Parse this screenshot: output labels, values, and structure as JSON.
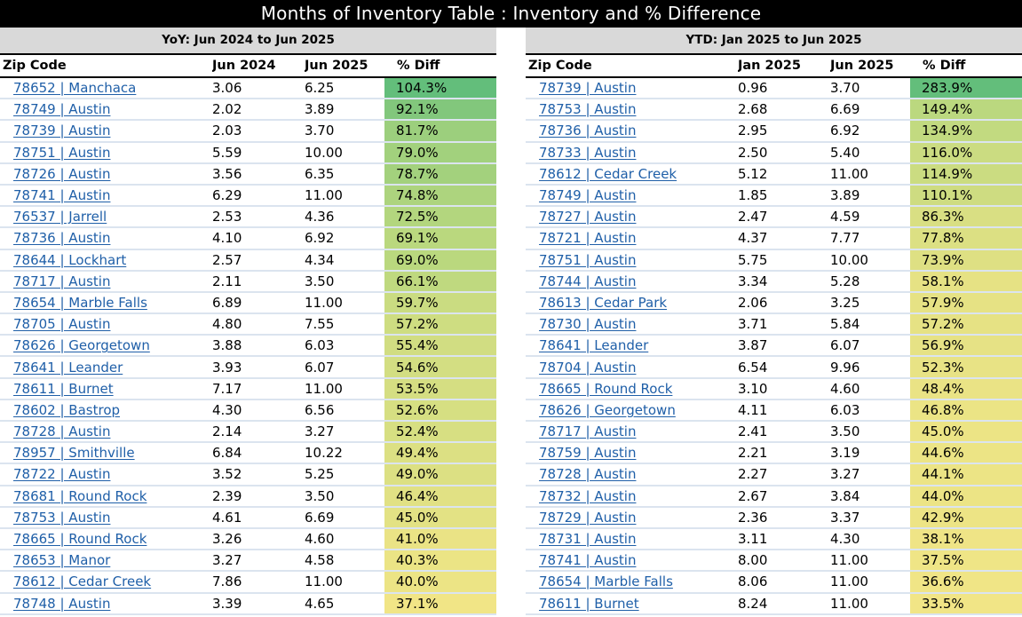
{
  "title": "Months of Inventory Table : Inventory and % Difference",
  "color_scale": {
    "max": "#63be7b",
    "mid": "#b7d77e",
    "min": "#f1e586"
  },
  "tables": [
    {
      "heading": "YoY: Jun 2024 to Jun 2025",
      "columns": [
        "Zip Code",
        "Jun 2024",
        "Jun 2025",
        "% Diff"
      ],
      "rows": [
        [
          "78652 | Manchaca",
          "3.06",
          "6.25",
          "104.3%"
        ],
        [
          "78749 | Austin",
          "2.02",
          "3.89",
          "92.1%"
        ],
        [
          "78739 | Austin",
          "2.03",
          "3.70",
          "81.7%"
        ],
        [
          "78751 | Austin",
          "5.59",
          "10.00",
          "79.0%"
        ],
        [
          "78726 | Austin",
          "3.56",
          "6.35",
          "78.7%"
        ],
        [
          "78741 | Austin",
          "6.29",
          "11.00",
          "74.8%"
        ],
        [
          "76537 | Jarrell",
          "2.53",
          "4.36",
          "72.5%"
        ],
        [
          "78736 | Austin",
          "4.10",
          "6.92",
          "69.1%"
        ],
        [
          "78644 | Lockhart",
          "2.57",
          "4.34",
          "69.0%"
        ],
        [
          "78717 | Austin",
          "2.11",
          "3.50",
          "66.1%"
        ],
        [
          "78654 | Marble Falls",
          "6.89",
          "11.00",
          "59.7%"
        ],
        [
          "78705 | Austin",
          "4.80",
          "7.55",
          "57.2%"
        ],
        [
          "78626 | Georgetown",
          "3.88",
          "6.03",
          "55.4%"
        ],
        [
          "78641 | Leander",
          "3.93",
          "6.07",
          "54.6%"
        ],
        [
          "78611 | Burnet",
          "7.17",
          "11.00",
          "53.5%"
        ],
        [
          "78602 | Bastrop",
          "4.30",
          "6.56",
          "52.6%"
        ],
        [
          "78728 | Austin",
          "2.14",
          "3.27",
          "52.4%"
        ],
        [
          "78957 | Smithville",
          "6.84",
          "10.22",
          "49.4%"
        ],
        [
          "78722 | Austin",
          "3.52",
          "5.25",
          "49.0%"
        ],
        [
          "78681 | Round Rock",
          "2.39",
          "3.50",
          "46.4%"
        ],
        [
          "78753 | Austin",
          "4.61",
          "6.69",
          "45.0%"
        ],
        [
          "78665 | Round Rock",
          "3.26",
          "4.60",
          "41.0%"
        ],
        [
          "78653 | Manor",
          "3.27",
          "4.58",
          "40.3%"
        ],
        [
          "78612 | Cedar Creek",
          "7.86",
          "11.00",
          "40.0%"
        ],
        [
          "78748 | Austin",
          "3.39",
          "4.65",
          "37.1%"
        ]
      ]
    },
    {
      "heading": "YTD: Jan 2025 to Jun 2025",
      "columns": [
        "Zip Code",
        "Jan 2025",
        "Jun 2025",
        "% Diff"
      ],
      "rows": [
        [
          "78739 | Austin",
          "0.96",
          "3.70",
          "283.9%"
        ],
        [
          "78753 | Austin",
          "2.68",
          "6.69",
          "149.4%"
        ],
        [
          "78736 | Austin",
          "2.95",
          "6.92",
          "134.9%"
        ],
        [
          "78733 | Austin",
          "2.50",
          "5.40",
          "116.0%"
        ],
        [
          "78612 | Cedar Creek",
          "5.12",
          "11.00",
          "114.9%"
        ],
        [
          "78749 | Austin",
          "1.85",
          "3.89",
          "110.1%"
        ],
        [
          "78727 | Austin",
          "2.47",
          "4.59",
          "86.3%"
        ],
        [
          "78721 | Austin",
          "4.37",
          "7.77",
          "77.8%"
        ],
        [
          "78751 | Austin",
          "5.75",
          "10.00",
          "73.9%"
        ],
        [
          "78744 | Austin",
          "3.34",
          "5.28",
          "58.1%"
        ],
        [
          "78613 | Cedar Park",
          "2.06",
          "3.25",
          "57.9%"
        ],
        [
          "78730 | Austin",
          "3.71",
          "5.84",
          "57.2%"
        ],
        [
          "78641 | Leander",
          "3.87",
          "6.07",
          "56.9%"
        ],
        [
          "78704 | Austin",
          "6.54",
          "9.96",
          "52.3%"
        ],
        [
          "78665 | Round Rock",
          "3.10",
          "4.60",
          "48.4%"
        ],
        [
          "78626 | Georgetown",
          "4.11",
          "6.03",
          "46.8%"
        ],
        [
          "78717 | Austin",
          "2.41",
          "3.50",
          "45.0%"
        ],
        [
          "78759 | Austin",
          "2.21",
          "3.19",
          "44.6%"
        ],
        [
          "78728 | Austin",
          "2.27",
          "3.27",
          "44.1%"
        ],
        [
          "78732 | Austin",
          "2.67",
          "3.84",
          "44.0%"
        ],
        [
          "78729 | Austin",
          "2.36",
          "3.37",
          "42.9%"
        ],
        [
          "78731 | Austin",
          "3.11",
          "4.30",
          "38.1%"
        ],
        [
          "78741 | Austin",
          "8.00",
          "11.00",
          "37.5%"
        ],
        [
          "78654 | Marble Falls",
          "8.06",
          "11.00",
          "36.6%"
        ],
        [
          "78611 | Burnet",
          "8.24",
          "11.00",
          "33.5%"
        ]
      ]
    }
  ]
}
